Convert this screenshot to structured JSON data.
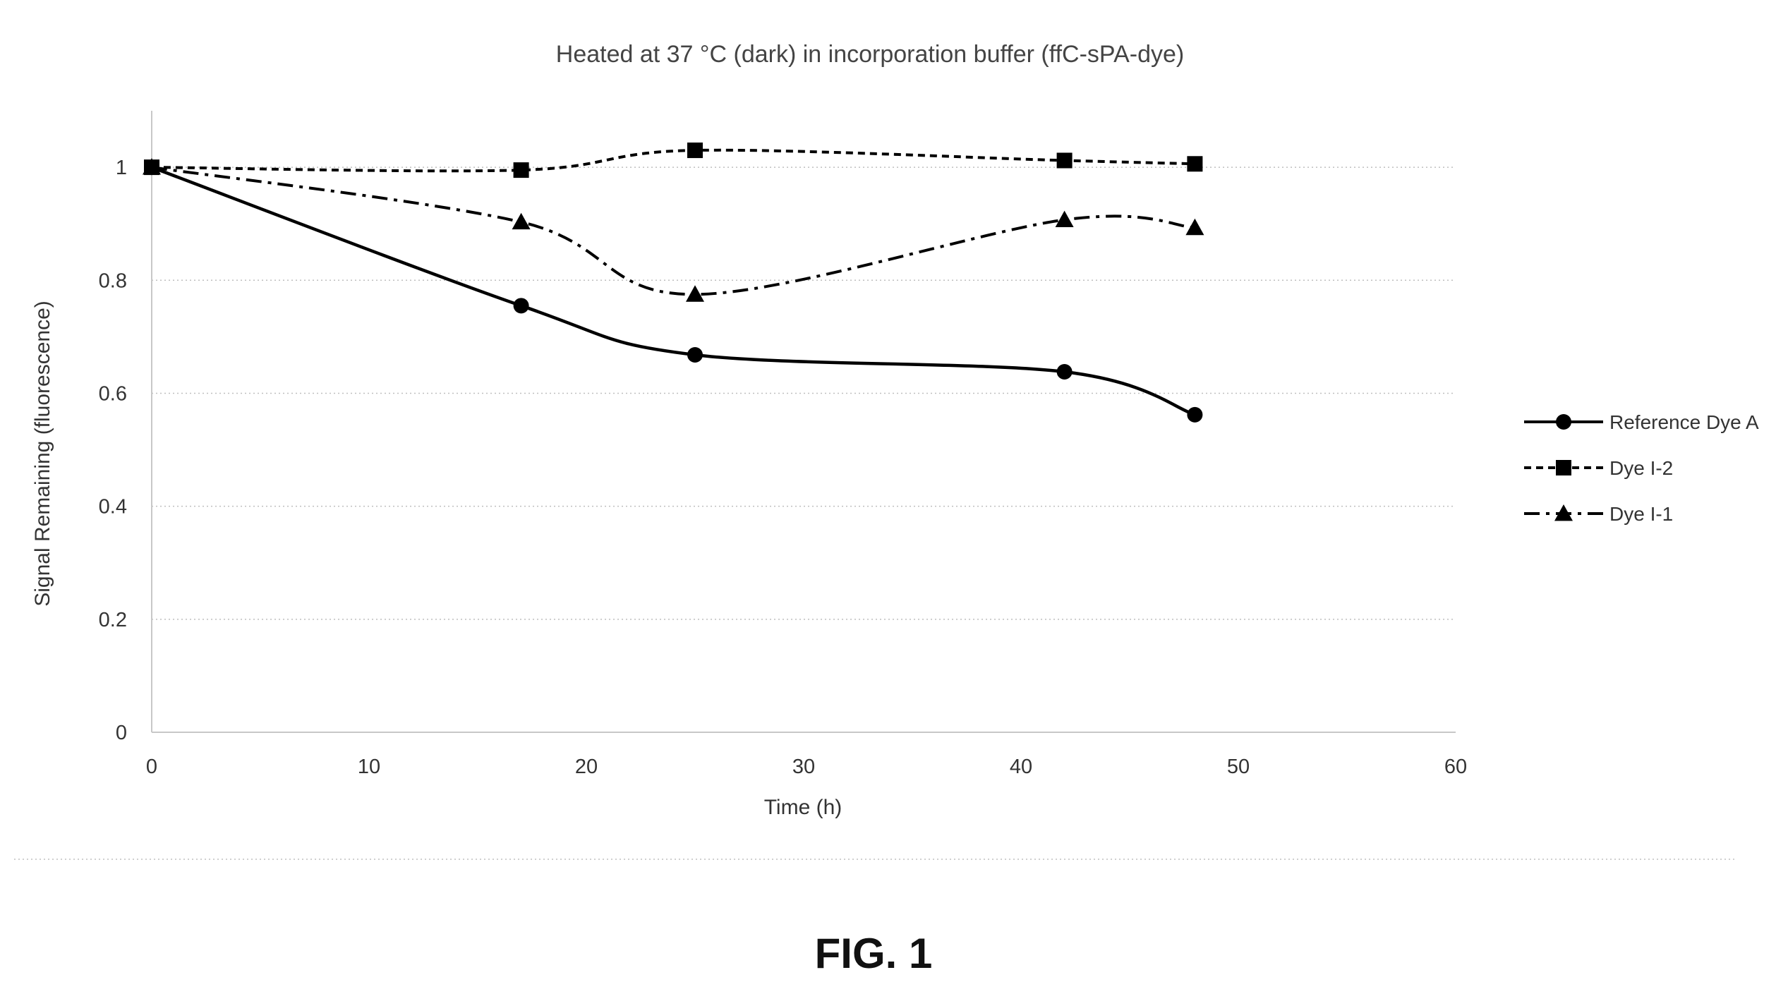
{
  "figure_label": "FIG. 1",
  "chart_data": {
    "type": "line",
    "title": "Heated at 37 °C (dark) in incorporation buffer (ffC-sPA-dye)",
    "xlabel": "Time (h)",
    "ylabel": "Signal Remaining (fluorescence)",
    "xlim": [
      0,
      60
    ],
    "ylim": [
      0,
      1.1
    ],
    "xticks": [
      "0",
      "10",
      "20",
      "30",
      "40",
      "50",
      "60"
    ],
    "yticks": [
      "0",
      "0.2",
      "0.4",
      "0.6",
      "0.8",
      "1"
    ],
    "grid": "horizontal-dotted",
    "legend_position": "right",
    "x": [
      0,
      17,
      25,
      42,
      48
    ],
    "series": [
      {
        "name": "Reference Dye A",
        "marker": "circle",
        "dash": "solid",
        "color": "#000000",
        "values": [
          1.0,
          0.755,
          0.668,
          0.638,
          0.562
        ]
      },
      {
        "name": "Dye I-2",
        "marker": "square",
        "dash": "short-dash",
        "color": "#000000",
        "values": [
          1.0,
          0.995,
          1.03,
          1.012,
          1.006
        ]
      },
      {
        "name": "Dye I-1",
        "marker": "triangle",
        "dash": "dash-dot",
        "color": "#000000",
        "values": [
          1.0,
          0.903,
          0.775,
          0.907,
          0.893
        ]
      }
    ]
  }
}
